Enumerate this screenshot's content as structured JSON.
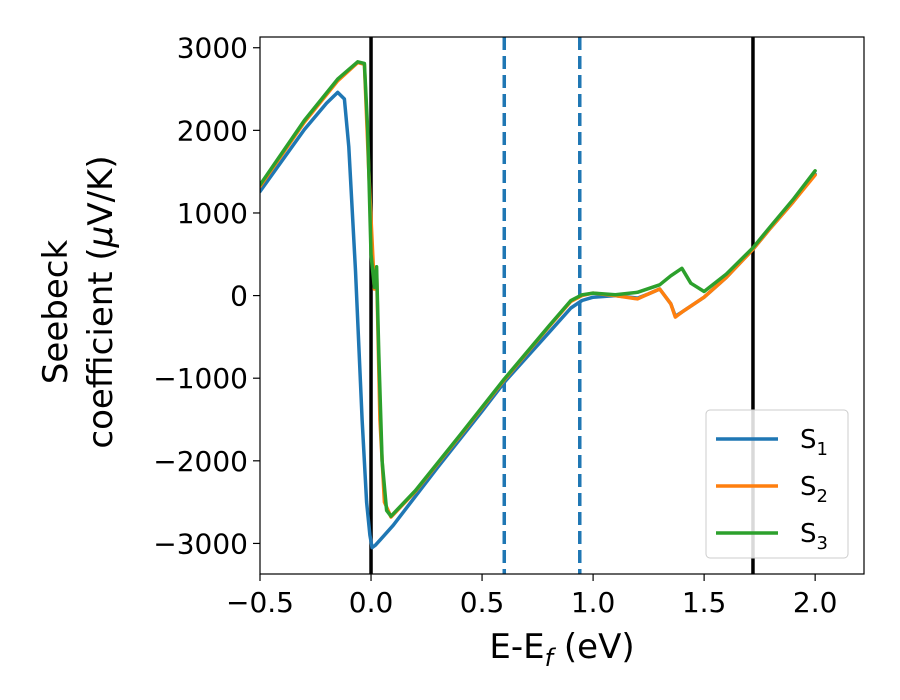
{
  "chart_data": {
    "type": "line",
    "title": "",
    "xlabel": "E-E",
    "xlabel_sub": "f",
    "xlabel_unit": " (eV)",
    "ylabel_line1": "Seebeck",
    "ylabel_line2": "coefficient  (",
    "ylabel_mu": "μ",
    "ylabel_unit": "V/K)",
    "xlim": [
      -0.5,
      2.22
    ],
    "ylim": [
      -3370,
      3130
    ],
    "xticks": [
      -0.5,
      0.0,
      0.5,
      1.0,
      1.5,
      2.0
    ],
    "xtick_labels": [
      "−0.5",
      "0.0",
      "0.5",
      "1.0",
      "1.5",
      "2.0"
    ],
    "yticks": [
      -3000,
      -2000,
      -1000,
      0,
      1000,
      2000,
      3000
    ],
    "ytick_labels": [
      "−3000",
      "−2000",
      "−1000",
      "0",
      "1000",
      "2000",
      "3000"
    ],
    "grid": false,
    "legend_position": "bottom-right",
    "vlines": [
      {
        "x": 0.0,
        "color": "#000000",
        "style": "solid"
      },
      {
        "x": 1.72,
        "color": "#000000",
        "style": "solid"
      },
      {
        "x": 0.6,
        "color": "#1f77b4",
        "style": "dashed"
      },
      {
        "x": 0.94,
        "color": "#1f77b4",
        "style": "dashed"
      }
    ],
    "series": [
      {
        "name": "S",
        "sub": "1",
        "color": "#1f77b4",
        "points": [
          [
            -0.5,
            1260
          ],
          [
            -0.3,
            2010
          ],
          [
            -0.2,
            2330
          ],
          [
            -0.15,
            2460
          ],
          [
            -0.12,
            2380
          ],
          [
            -0.1,
            1800
          ],
          [
            -0.07,
            300
          ],
          [
            -0.04,
            -1500
          ],
          [
            -0.02,
            -2500
          ],
          [
            -0.005,
            -2900
          ],
          [
            0.005,
            -3050
          ],
          [
            0.02,
            -3020
          ],
          [
            0.1,
            -2780
          ],
          [
            0.3,
            -2080
          ],
          [
            0.5,
            -1400
          ],
          [
            0.6,
            -1050
          ],
          [
            0.8,
            -450
          ],
          [
            0.9,
            -150
          ],
          [
            0.95,
            -60
          ],
          [
            1.0,
            -20
          ],
          [
            1.1,
            0
          ],
          [
            1.2,
            -30
          ],
          [
            1.25,
            20
          ],
          [
            1.3,
            80
          ],
          [
            1.35,
            -100
          ],
          [
            1.37,
            -250
          ],
          [
            1.4,
            -200
          ],
          [
            1.5,
            -20
          ],
          [
            1.6,
            220
          ],
          [
            1.72,
            560
          ],
          [
            1.8,
            820
          ],
          [
            1.9,
            1130
          ],
          [
            2.0,
            1470
          ]
        ]
      },
      {
        "name": "S",
        "sub": "2",
        "color": "#ff7f0e",
        "points": [
          [
            -0.5,
            1320
          ],
          [
            -0.3,
            2100
          ],
          [
            -0.15,
            2600
          ],
          [
            -0.06,
            2820
          ],
          [
            -0.03,
            2800
          ],
          [
            -0.01,
            1500
          ],
          [
            0.015,
            80
          ],
          [
            0.025,
            300
          ],
          [
            0.04,
            -1500
          ],
          [
            0.06,
            -2500
          ],
          [
            0.09,
            -2680
          ],
          [
            0.2,
            -2370
          ],
          [
            0.4,
            -1700
          ],
          [
            0.6,
            -1020
          ],
          [
            0.8,
            -380
          ],
          [
            0.9,
            -70
          ],
          [
            0.95,
            0
          ],
          [
            1.0,
            30
          ],
          [
            1.1,
            0
          ],
          [
            1.2,
            -40
          ],
          [
            1.25,
            20
          ],
          [
            1.3,
            80
          ],
          [
            1.35,
            -100
          ],
          [
            1.37,
            -260
          ],
          [
            1.4,
            -200
          ],
          [
            1.5,
            -20
          ],
          [
            1.6,
            220
          ],
          [
            1.72,
            560
          ],
          [
            1.8,
            820
          ],
          [
            1.9,
            1130
          ],
          [
            2.0,
            1460
          ]
        ]
      },
      {
        "name": "S",
        "sub": "3",
        "color": "#2ca02c",
        "points": [
          [
            -0.5,
            1340
          ],
          [
            -0.3,
            2120
          ],
          [
            -0.15,
            2620
          ],
          [
            -0.06,
            2830
          ],
          [
            -0.03,
            2810
          ],
          [
            -0.015,
            2000
          ],
          [
            0.0,
            500
          ],
          [
            0.015,
            100
          ],
          [
            0.025,
            350
          ],
          [
            0.035,
            -700
          ],
          [
            0.05,
            -2000
          ],
          [
            0.07,
            -2600
          ],
          [
            0.09,
            -2670
          ],
          [
            0.2,
            -2360
          ],
          [
            0.4,
            -1690
          ],
          [
            0.6,
            -1010
          ],
          [
            0.8,
            -370
          ],
          [
            0.9,
            -60
          ],
          [
            0.95,
            10
          ],
          [
            1.0,
            30
          ],
          [
            1.1,
            10
          ],
          [
            1.2,
            40
          ],
          [
            1.3,
            130
          ],
          [
            1.35,
            240
          ],
          [
            1.4,
            330
          ],
          [
            1.44,
            150
          ],
          [
            1.5,
            50
          ],
          [
            1.6,
            260
          ],
          [
            1.72,
            580
          ],
          [
            1.8,
            840
          ],
          [
            1.9,
            1160
          ],
          [
            2.0,
            1510
          ]
        ]
      }
    ]
  }
}
